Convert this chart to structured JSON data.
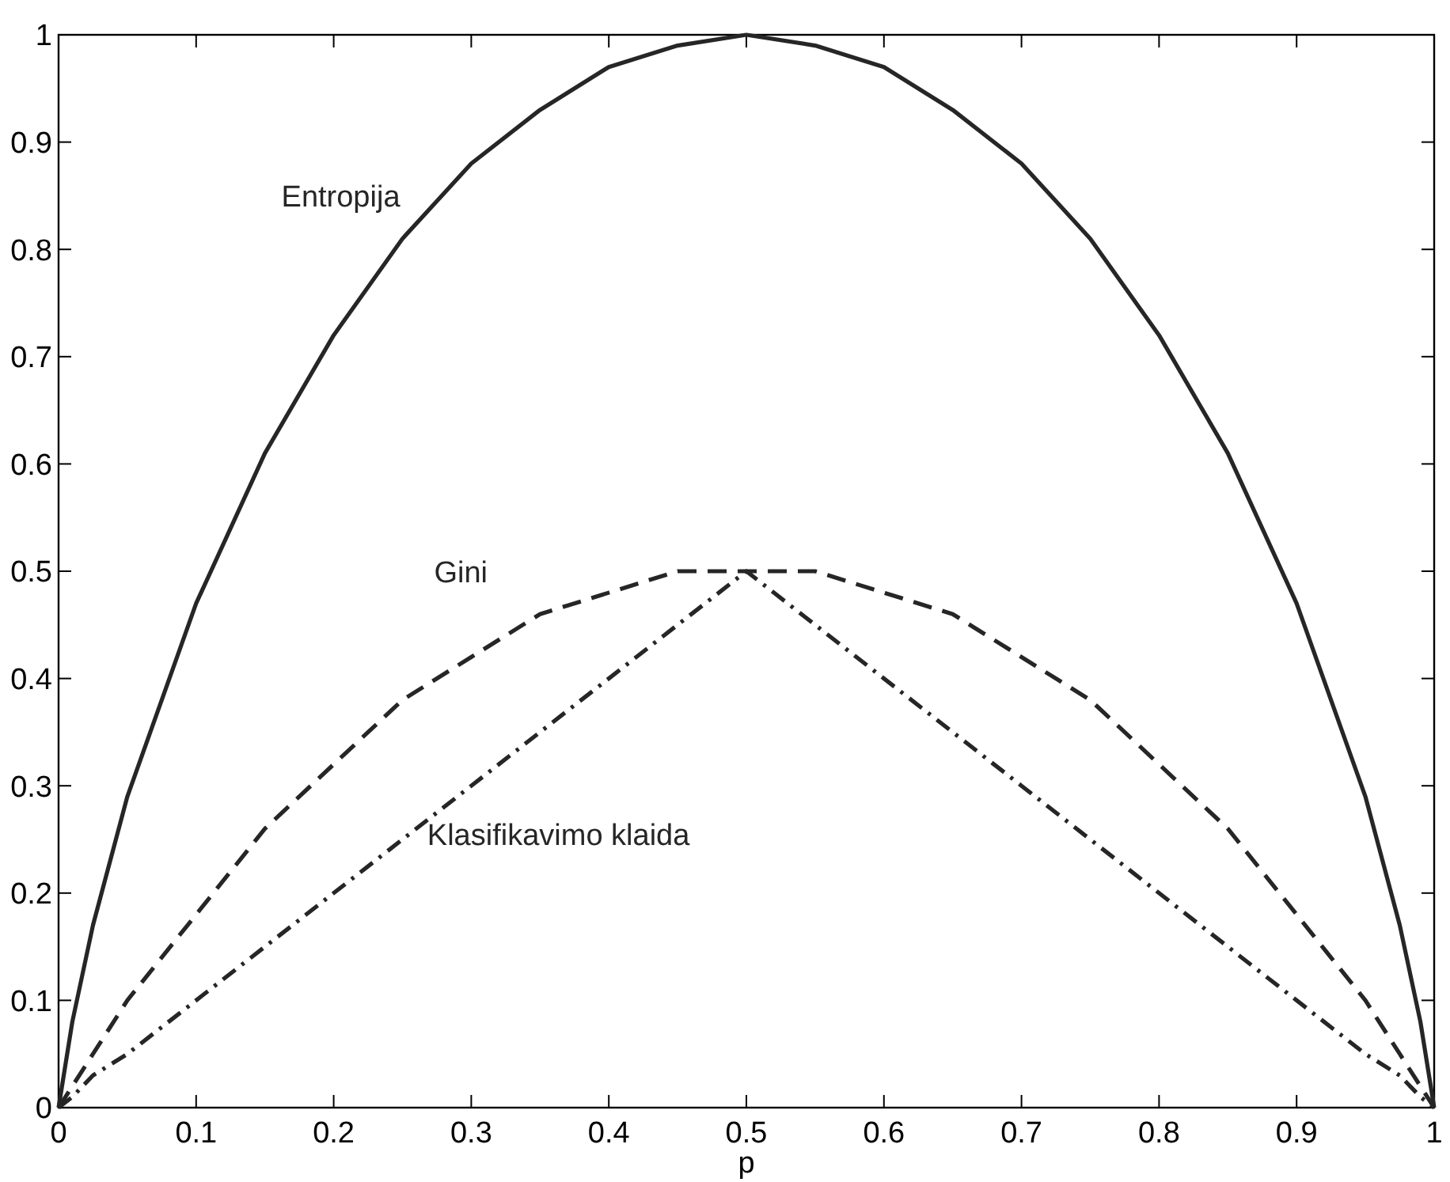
{
  "chart_data": {
    "type": "line",
    "xlabel": "p",
    "x": [
      0,
      0.01,
      0.025,
      0.05,
      0.1,
      0.15,
      0.2,
      0.25,
      0.3,
      0.35,
      0.4,
      0.45,
      0.5,
      0.55,
      0.6,
      0.65,
      0.7,
      0.75,
      0.8,
      0.85,
      0.9,
      0.95,
      0.975,
      0.99,
      1
    ],
    "series": [
      {
        "name": "Entropija",
        "color": "#262626",
        "line_style": "solid",
        "values": [
          0,
          0.08,
          0.17,
          0.29,
          0.47,
          0.61,
          0.72,
          0.81,
          0.88,
          0.93,
          0.97,
          0.99,
          1,
          0.99,
          0.97,
          0.93,
          0.88,
          0.81,
          0.72,
          0.61,
          0.47,
          0.29,
          0.17,
          0.08,
          0
        ]
      },
      {
        "name": "Gini",
        "color": "#262626",
        "line_style": "dashed",
        "values": [
          0,
          0.02,
          0.05,
          0.1,
          0.18,
          0.26,
          0.32,
          0.38,
          0.42,
          0.46,
          0.48,
          0.5,
          0.5,
          0.5,
          0.48,
          0.46,
          0.42,
          0.38,
          0.32,
          0.26,
          0.18,
          0.1,
          0.05,
          0.02,
          0
        ]
      },
      {
        "name": "Klasifikavimo klaida",
        "color": "#262626",
        "line_style": "dashdot",
        "values": [
          0,
          0.01,
          0.03,
          0.05,
          0.1,
          0.15,
          0.2,
          0.25,
          0.3,
          0.35,
          0.4,
          0.45,
          0.5,
          0.45,
          0.4,
          0.35,
          0.3,
          0.25,
          0.2,
          0.15,
          0.1,
          0.05,
          0.03,
          0.01,
          0
        ]
      }
    ],
    "xlim": [
      0,
      1
    ],
    "ylim": [
      0,
      1
    ],
    "xticks": [
      0,
      0.1,
      0.2,
      0.3,
      0.4,
      0.5,
      0.6,
      0.7,
      0.8,
      0.9,
      1
    ],
    "yticks": [
      0,
      0.1,
      0.2,
      0.3,
      0.4,
      0.5,
      0.6,
      0.7,
      0.8,
      0.9,
      1
    ],
    "grid": false,
    "marker": "none"
  }
}
